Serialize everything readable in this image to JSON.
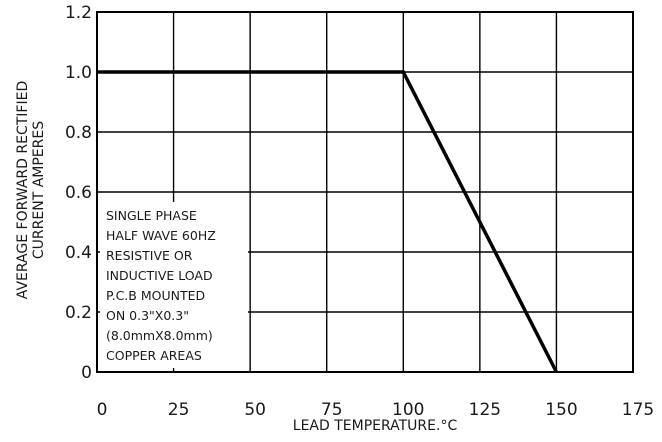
{
  "chart_data": {
    "type": "line",
    "xlabel": "LEAD TEMPERATURE.°C",
    "ylabel": [
      "AVERAGE FORWARD RECTIFIED",
      "CURRENT AMPERES"
    ],
    "xlim": [
      0,
      175
    ],
    "ylim": [
      0,
      1.2
    ],
    "xticks": [
      0,
      25,
      50,
      75,
      100,
      125,
      150,
      175
    ],
    "xtick_labels": [
      "0",
      "25",
      "50",
      "75",
      "100",
      "125",
      "150",
      "175"
    ],
    "yticks": [
      0,
      0.2,
      0.4,
      0.6,
      0.8,
      1.0,
      1.2
    ],
    "ytick_labels": [
      "0",
      "0.2",
      "0.4",
      "0.6",
      "0.8",
      "1.0",
      "1.2"
    ],
    "grid": true,
    "series": [
      {
        "x": [
          0,
          100,
          150
        ],
        "y": [
          1.0,
          1.0,
          0
        ],
        "color": "#000000"
      }
    ],
    "annotation": [
      "SINGLE PHASE",
      "HALF WAVE  60HZ",
      "RESISTIVE OR",
      "INDUCTIVE LOAD",
      "P.C.B MOUNTED",
      "ON 0.3\"X0.3\"",
      "(8.0mmX8.0mm)",
      "COPPER AREAS"
    ]
  }
}
